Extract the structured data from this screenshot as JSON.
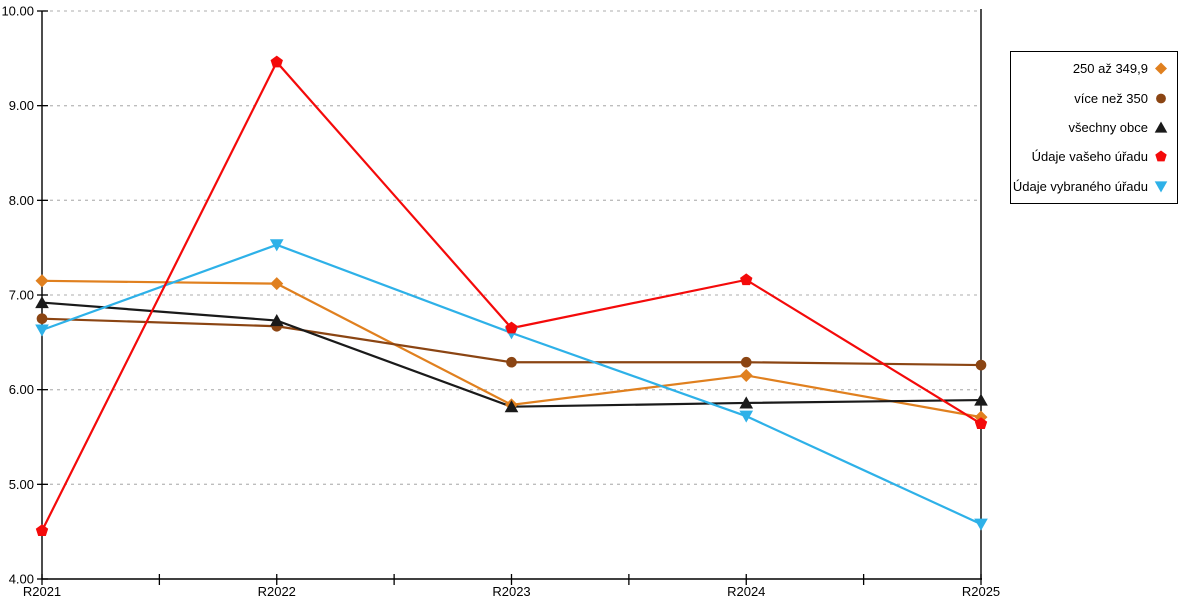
{
  "page": {
    "background": "#ffffff"
  },
  "chart_data": {
    "type": "line",
    "x_categories": [
      "R2021",
      "R2022",
      "R2023",
      "R2024",
      "R2025"
    ],
    "y_ticks": [
      {
        "value": 10,
        "label": "10.00"
      },
      {
        "value": 9,
        "label": "9.00"
      },
      {
        "value": 8,
        "label": "8.00"
      },
      {
        "value": 7,
        "label": "7.00"
      },
      {
        "value": 6,
        "label": "6.00"
      },
      {
        "value": 5,
        "label": "5.00"
      },
      {
        "value": 4,
        "label": "4.00"
      }
    ],
    "ylim": [
      4,
      10
    ],
    "grid": {
      "horizontal": true,
      "style": "dotted",
      "color": "#BDBDBD"
    },
    "axis_color": "#000000",
    "legend": {
      "position": "outside-top-right",
      "border_color": "#000000",
      "background": "#ffffff"
    },
    "series": [
      {
        "name": "250 až 349,9",
        "color": "#E0801F",
        "marker": "diamond",
        "values": [
          7.15,
          7.12,
          5.84,
          6.15,
          5.71
        ]
      },
      {
        "name": "více než 350",
        "color": "#8B4513",
        "marker": "circle",
        "values": [
          6.75,
          6.67,
          6.29,
          6.29,
          6.26
        ]
      },
      {
        "name": "všechny obce",
        "color": "#1A1A1A",
        "marker": "triangle-up",
        "values": [
          6.92,
          6.73,
          5.82,
          5.86,
          5.89
        ]
      },
      {
        "name": "Údaje vašeho úřadu",
        "color": "#F40A0A",
        "marker": "pentagon",
        "values": [
          4.51,
          9.46,
          6.65,
          7.16,
          5.64
        ]
      },
      {
        "name": "Údaje vybraného úřadu",
        "color": "#2EB1E8",
        "marker": "triangle-down",
        "values": [
          6.63,
          7.53,
          6.6,
          5.72,
          4.58
        ]
      }
    ]
  }
}
